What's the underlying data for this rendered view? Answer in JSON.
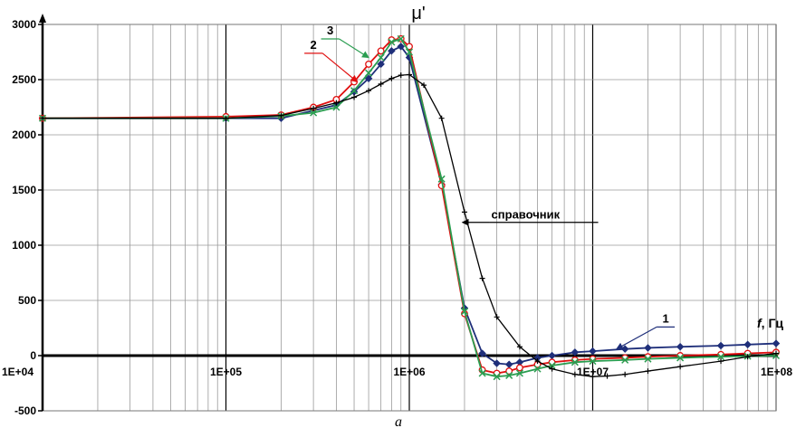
{
  "chart_data": {
    "type": "line",
    "x_scale": "log",
    "xlim": [
      10000,
      100000000
    ],
    "ylim": [
      -500,
      3000
    ],
    "grid": true,
    "ylabel": "μ'",
    "xlabel_italic": "f",
    "xlabel_unit": ", Гц",
    "caption": "a",
    "x_ticks": [
      {
        "value": 10000,
        "label": "1E+04"
      },
      {
        "value": 100000,
        "label": "1E+05"
      },
      {
        "value": 1000000,
        "label": "1E+06"
      },
      {
        "value": 10000000,
        "label": "1E+07"
      },
      {
        "value": 100000000,
        "label": "1E+08"
      }
    ],
    "y_ticks": [
      {
        "value": 3000,
        "label": "3000"
      },
      {
        "value": 2500,
        "label": "2500"
      },
      {
        "value": 2000,
        "label": "2000"
      },
      {
        "value": 1500,
        "label": "1500"
      },
      {
        "value": 1000,
        "label": "1000"
      },
      {
        "value": 500,
        "label": "500"
      },
      {
        "value": 0,
        "label": "0"
      },
      {
        "value": -500,
        "label": "-500"
      }
    ],
    "series": [
      {
        "name": "1",
        "color": "#1f2f7a",
        "marker": "diamond",
        "x": [
          10000,
          100000,
          200000,
          400000,
          500000,
          600000,
          700000,
          800000,
          900000,
          1000000,
          1500000,
          2000000,
          2500000,
          3000000,
          3500000,
          4000000,
          5000000,
          6000000,
          8000000,
          10000000,
          15000000,
          20000000,
          30000000,
          50000000,
          70000000,
          100000000
        ],
        "y": [
          2150,
          2150,
          2150,
          2270,
          2390,
          2510,
          2640,
          2760,
          2800,
          2700,
          1550,
          430,
          20,
          -70,
          -80,
          -60,
          -20,
          0,
          30,
          40,
          60,
          70,
          80,
          90,
          100,
          110
        ]
      },
      {
        "name": "2",
        "color": "#e01010",
        "marker": "circle",
        "x": [
          10000,
          100000,
          200000,
          300000,
          400000,
          500000,
          600000,
          700000,
          800000,
          900000,
          1000000,
          1500000,
          2000000,
          2500000,
          3000000,
          3500000,
          4000000,
          5000000,
          6000000,
          8000000,
          10000000,
          15000000,
          20000000,
          30000000,
          50000000,
          70000000,
          100000000
        ],
        "y": [
          2150,
          2165,
          2180,
          2250,
          2320,
          2480,
          2640,
          2760,
          2860,
          2870,
          2800,
          1540,
          380,
          -130,
          -160,
          -140,
          -110,
          -80,
          -60,
          -40,
          -30,
          -20,
          -10,
          0,
          10,
          20,
          30
        ]
      },
      {
        "name": "3",
        "color": "#2a9d50",
        "marker": "x",
        "x": [
          10000,
          100000,
          200000,
          300000,
          400000,
          500000,
          600000,
          700000,
          800000,
          900000,
          1000000,
          1500000,
          2000000,
          2500000,
          3000000,
          3500000,
          4000000,
          5000000,
          6000000,
          8000000,
          10000000,
          15000000,
          20000000,
          30000000,
          50000000,
          70000000,
          100000000
        ],
        "y": [
          2150,
          2150,
          2170,
          2200,
          2250,
          2400,
          2560,
          2700,
          2840,
          2870,
          2750,
          1600,
          400,
          -160,
          -190,
          -180,
          -160,
          -120,
          -90,
          -60,
          -50,
          -40,
          -30,
          -20,
          -10,
          -5,
          0
        ]
      },
      {
        "name": "справочник",
        "color": "#000000",
        "marker": "plus",
        "x": [
          10000,
          100000,
          200000,
          300000,
          400000,
          500000,
          600000,
          700000,
          800000,
          900000,
          1000000,
          1200000,
          1500000,
          2000000,
          2500000,
          3000000,
          4000000,
          5000000,
          6000000,
          8000000,
          10000000,
          12000000,
          15000000,
          20000000,
          30000000,
          50000000,
          70000000,
          100000000
        ],
        "y": [
          2150,
          2150,
          2175,
          2240,
          2290,
          2340,
          2400,
          2460,
          2510,
          2540,
          2545,
          2450,
          2150,
          1300,
          700,
          350,
          80,
          -50,
          -120,
          -170,
          -190,
          -185,
          -170,
          -140,
          -100,
          -50,
          -10,
          20
        ]
      }
    ],
    "annotations": [
      {
        "text": "1",
        "series": "1",
        "label_pos": [
          25000000,
          300
        ],
        "arrow_to": [
          13500000,
          60
        ]
      },
      {
        "text": "2",
        "series": "2",
        "label_pos": [
          300000,
          2780
        ],
        "arrow_to": [
          520000,
          2480
        ]
      },
      {
        "text": "3",
        "series": "3",
        "label_pos": [
          370000,
          2910
        ],
        "arrow_to": [
          600000,
          2700
        ]
      },
      {
        "text": "справочник",
        "series": "справочник",
        "label_pos": [
          2800000,
          1240
        ],
        "arrow_to": [
          1950000,
          1240
        ]
      }
    ]
  }
}
